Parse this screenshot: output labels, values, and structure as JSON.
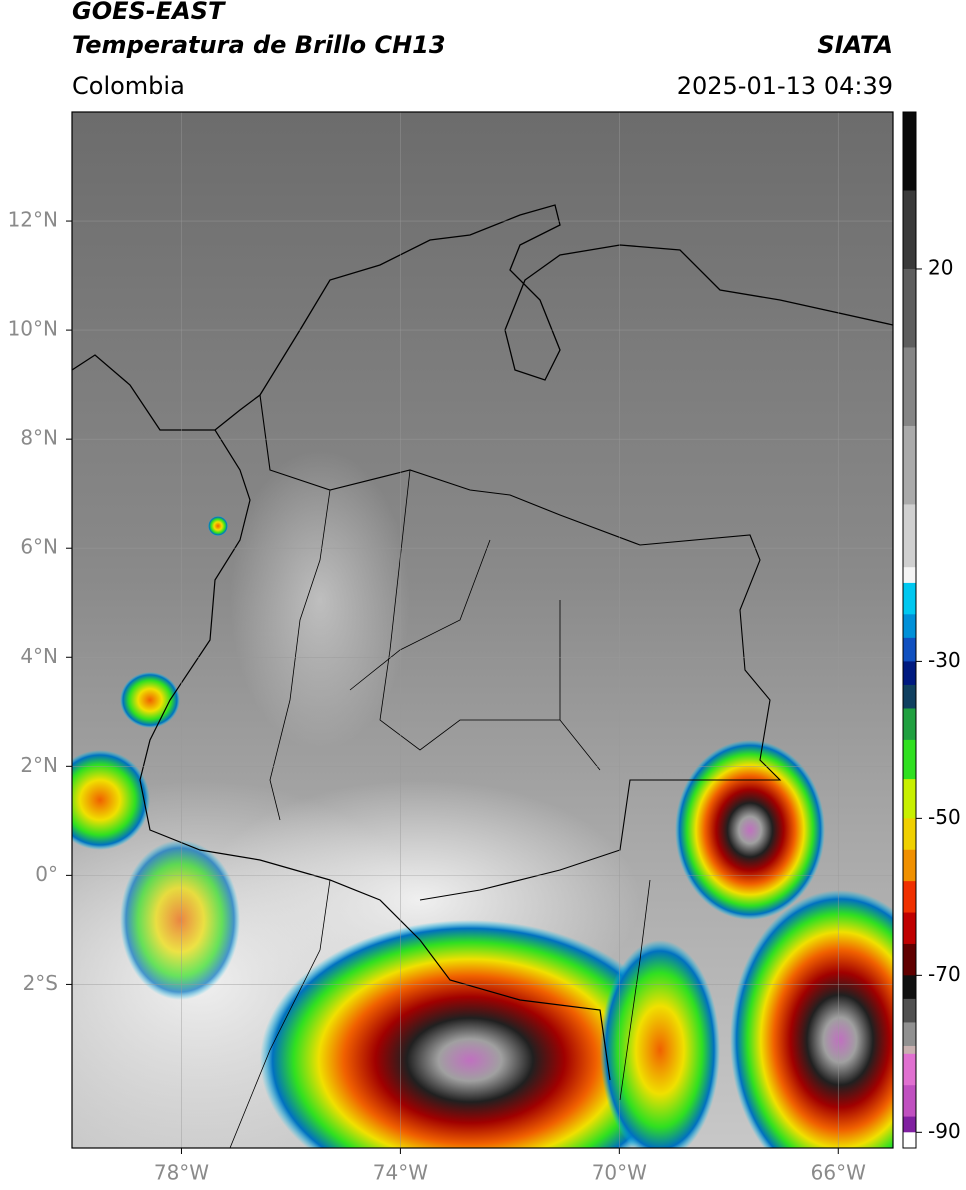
{
  "header": {
    "satellite": "GOES-EAST",
    "product": "Temperatura de Brillo CH13",
    "source": "SIATA",
    "region": "Colombia",
    "datetime": "2025-01-13 04:39"
  },
  "map": {
    "xlim": [
      -80,
      -65
    ],
    "ylim": [
      -5,
      14
    ],
    "xticks": [
      {
        "value": -78,
        "label": "78°W"
      },
      {
        "value": -74,
        "label": "74°W"
      },
      {
        "value": -70,
        "label": "70°W"
      },
      {
        "value": -66,
        "label": "66°W"
      }
    ],
    "yticks": [
      {
        "value": 12,
        "label": "12°N"
      },
      {
        "value": 10,
        "label": "10°N"
      },
      {
        "value": 8,
        "label": "8°N"
      },
      {
        "value": 6,
        "label": "6°N"
      },
      {
        "value": 4,
        "label": "4°N"
      },
      {
        "value": 2,
        "label": "2°N"
      },
      {
        "value": 0,
        "label": "0°"
      },
      {
        "value": -2,
        "label": "2°S"
      }
    ],
    "grid": true
  },
  "colorbar": {
    "lim": [
      -92,
      40
    ],
    "ticks": [
      20,
      -30,
      -50,
      -70,
      -90
    ],
    "stops": [
      {
        "value": 40,
        "color": "#0a0a0a"
      },
      {
        "value": 30,
        "color": "#3a3a3a"
      },
      {
        "value": 20,
        "color": "#5e5e5e"
      },
      {
        "value": 10,
        "color": "#858585"
      },
      {
        "value": 0,
        "color": "#aaaaaa"
      },
      {
        "value": -10,
        "color": "#d0d0d0"
      },
      {
        "value": -18,
        "color": "#f5f5f5"
      },
      {
        "value": -20,
        "color": "#00c8f0"
      },
      {
        "value": -24,
        "color": "#0090d8"
      },
      {
        "value": -27,
        "color": "#1050c0"
      },
      {
        "value": -30,
        "color": "#001a80"
      },
      {
        "value": -33,
        "color": "#104060"
      },
      {
        "value": -36,
        "color": "#20a040"
      },
      {
        "value": -40,
        "color": "#30e020"
      },
      {
        "value": -45,
        "color": "#c8f000"
      },
      {
        "value": -50,
        "color": "#f0d000"
      },
      {
        "value": -54,
        "color": "#f09000"
      },
      {
        "value": -58,
        "color": "#f03000"
      },
      {
        "value": -62,
        "color": "#c00000"
      },
      {
        "value": -66,
        "color": "#600000"
      },
      {
        "value": -70,
        "color": "#101010"
      },
      {
        "value": -73,
        "color": "#505050"
      },
      {
        "value": -76,
        "color": "#909090"
      },
      {
        "value": -79,
        "color": "#c8b0b0"
      },
      {
        "value": -80,
        "color": "#e070d0"
      },
      {
        "value": -84,
        "color": "#c050c0"
      },
      {
        "value": -88,
        "color": "#8020a0"
      },
      {
        "value": -90,
        "color": "#ffffff"
      }
    ]
  }
}
